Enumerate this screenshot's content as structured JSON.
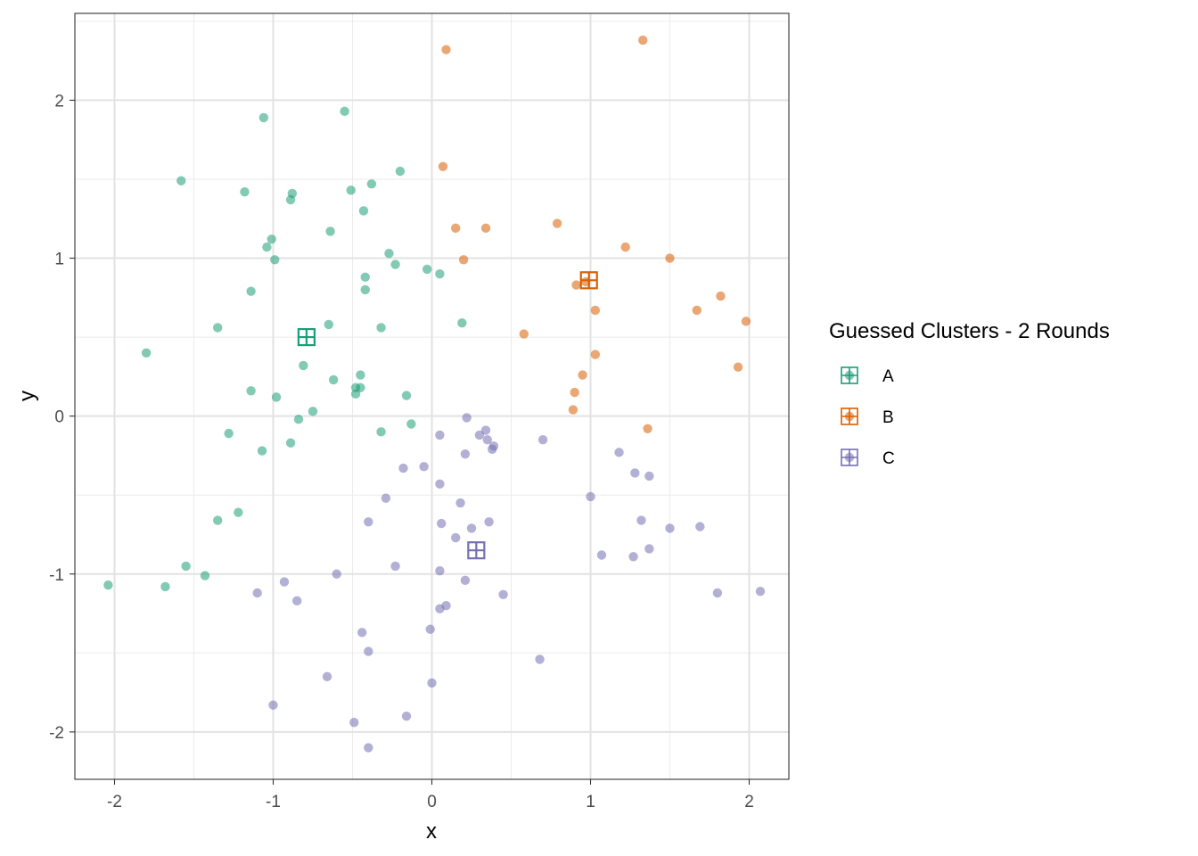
{
  "chart_data": {
    "type": "scatter",
    "xlabel": "x",
    "ylabel": "y",
    "xlim": [
      -2.25,
      2.25
    ],
    "ylim": [
      -2.3,
      2.55
    ],
    "x_ticks": [
      -2,
      -1,
      0,
      1,
      2
    ],
    "y_ticks": [
      -2,
      -1,
      0,
      1,
      2
    ],
    "x_tick_labels": [
      "-2",
      "-1",
      "0",
      "1",
      "2"
    ],
    "y_tick_labels": [
      "-2",
      "-1",
      "0",
      "1",
      "2"
    ],
    "grid": true,
    "theme": "bw",
    "legend": {
      "title": "Guessed Clusters - 2 Rounds",
      "position": "right",
      "entries": [
        "A",
        "B",
        "C"
      ]
    },
    "series": [
      {
        "name": "A",
        "color": "#1B9E77",
        "centroid": [
          -0.79,
          0.5
        ],
        "points": [
          [
            -1.06,
            1.89
          ],
          [
            -0.55,
            1.93
          ],
          [
            -1.58,
            1.49
          ],
          [
            -1.18,
            1.42
          ],
          [
            -0.88,
            1.41
          ],
          [
            -0.89,
            1.37
          ],
          [
            -0.51,
            1.43
          ],
          [
            -0.38,
            1.47
          ],
          [
            -0.2,
            1.55
          ],
          [
            -0.43,
            1.3
          ],
          [
            -0.64,
            1.17
          ],
          [
            -1.01,
            1.12
          ],
          [
            -1.04,
            1.07
          ],
          [
            -0.99,
            0.99
          ],
          [
            -0.27,
            1.03
          ],
          [
            -0.23,
            0.96
          ],
          [
            -0.03,
            0.93
          ],
          [
            0.05,
            0.9
          ],
          [
            -0.42,
            0.88
          ],
          [
            -0.42,
            0.8
          ],
          [
            -1.14,
            0.79
          ],
          [
            -1.35,
            0.56
          ],
          [
            -0.65,
            0.58
          ],
          [
            -0.32,
            0.56
          ],
          [
            0.19,
            0.59
          ],
          [
            -1.8,
            0.4
          ],
          [
            -0.81,
            0.32
          ],
          [
            -0.45,
            0.26
          ],
          [
            -0.62,
            0.23
          ],
          [
            -0.48,
            0.18
          ],
          [
            -0.45,
            0.18
          ],
          [
            -0.48,
            0.14
          ],
          [
            -1.14,
            0.16
          ],
          [
            -0.98,
            0.12
          ],
          [
            -0.16,
            0.13
          ],
          [
            -0.75,
            0.03
          ],
          [
            -0.84,
            -0.02
          ],
          [
            -0.13,
            -0.05
          ],
          [
            -0.32,
            -0.1
          ],
          [
            -1.28,
            -0.11
          ],
          [
            -0.89,
            -0.17
          ],
          [
            -1.07,
            -0.22
          ],
          [
            -1.22,
            -0.61
          ],
          [
            -1.35,
            -0.66
          ],
          [
            -1.55,
            -0.95
          ],
          [
            -1.43,
            -1.01
          ],
          [
            -2.04,
            -1.07
          ],
          [
            -1.68,
            -1.08
          ]
        ]
      },
      {
        "name": "B",
        "color": "#D95F02",
        "centroid": [
          0.99,
          0.86
        ],
        "points": [
          [
            0.09,
            2.32
          ],
          [
            1.33,
            2.38
          ],
          [
            0.07,
            1.58
          ],
          [
            0.15,
            1.19
          ],
          [
            0.34,
            1.19
          ],
          [
            0.79,
            1.22
          ],
          [
            1.22,
            1.07
          ],
          [
            0.2,
            0.99
          ],
          [
            1.5,
            1.0
          ],
          [
            0.91,
            0.83
          ],
          [
            0.97,
            0.85
          ],
          [
            1.03,
            0.67
          ],
          [
            1.67,
            0.67
          ],
          [
            1.82,
            0.76
          ],
          [
            1.98,
            0.6
          ],
          [
            0.58,
            0.52
          ],
          [
            1.03,
            0.39
          ],
          [
            1.93,
            0.31
          ],
          [
            0.95,
            0.26
          ],
          [
            0.9,
            0.15
          ],
          [
            0.89,
            0.04
          ],
          [
            1.36,
            -0.08
          ]
        ]
      },
      {
        "name": "C",
        "color": "#7570B3",
        "centroid": [
          0.28,
          -0.85
        ],
        "points": [
          [
            0.22,
            -0.01
          ],
          [
            0.34,
            -0.09
          ],
          [
            0.3,
            -0.12
          ],
          [
            0.05,
            -0.12
          ],
          [
            0.35,
            -0.15
          ],
          [
            0.7,
            -0.15
          ],
          [
            0.39,
            -0.19
          ],
          [
            0.38,
            -0.21
          ],
          [
            0.21,
            -0.24
          ],
          [
            1.18,
            -0.23
          ],
          [
            -0.18,
            -0.33
          ],
          [
            -0.05,
            -0.32
          ],
          [
            1.28,
            -0.36
          ],
          [
            1.37,
            -0.38
          ],
          [
            0.05,
            -0.43
          ],
          [
            -0.29,
            -0.52
          ],
          [
            1.0,
            -0.51
          ],
          [
            0.18,
            -0.55
          ],
          [
            -0.4,
            -0.67
          ],
          [
            0.06,
            -0.68
          ],
          [
            0.36,
            -0.67
          ],
          [
            1.32,
            -0.66
          ],
          [
            0.25,
            -0.71
          ],
          [
            1.5,
            -0.71
          ],
          [
            1.69,
            -0.7
          ],
          [
            0.15,
            -0.77
          ],
          [
            1.37,
            -0.84
          ],
          [
            1.07,
            -0.88
          ],
          [
            1.27,
            -0.89
          ],
          [
            -0.23,
            -0.95
          ],
          [
            0.05,
            -0.98
          ],
          [
            -0.6,
            -1.0
          ],
          [
            -0.93,
            -1.05
          ],
          [
            0.21,
            -1.04
          ],
          [
            -1.1,
            -1.12
          ],
          [
            0.45,
            -1.13
          ],
          [
            1.8,
            -1.12
          ],
          [
            2.07,
            -1.11
          ],
          [
            -0.85,
            -1.17
          ],
          [
            0.09,
            -1.2
          ],
          [
            0.05,
            -1.22
          ],
          [
            -0.01,
            -1.35
          ],
          [
            -0.44,
            -1.37
          ],
          [
            -0.4,
            -1.49
          ],
          [
            0.68,
            -1.54
          ],
          [
            -0.66,
            -1.65
          ],
          [
            0.0,
            -1.69
          ],
          [
            -1.0,
            -1.83
          ],
          [
            -0.16,
            -1.9
          ],
          [
            -0.49,
            -1.94
          ],
          [
            -0.4,
            -2.1
          ]
        ]
      }
    ]
  }
}
